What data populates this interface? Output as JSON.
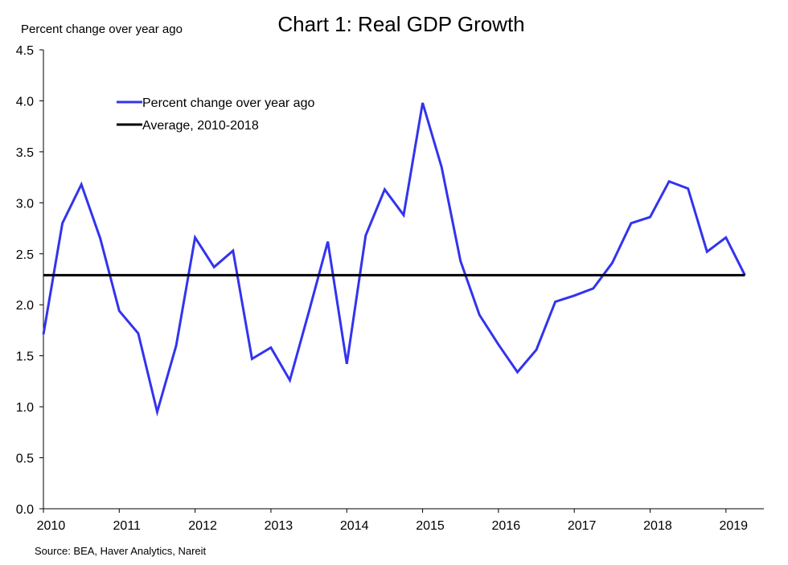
{
  "chart_data": {
    "type": "line",
    "title": "Chart 1: Real GDP Growth",
    "ylabel": "Percent change over year ago",
    "source": "Source: BEA, Haver Analytics, Nareit",
    "ylim": [
      0,
      4.5
    ],
    "yticks": [
      "0.0",
      "0.5",
      "1.0",
      "1.5",
      "2.0",
      "2.5",
      "3.0",
      "3.5",
      "4.0",
      "4.5"
    ],
    "xlim": [
      2010.0,
      2019.5
    ],
    "xticks": [
      "2010",
      "2011",
      "2012",
      "2013",
      "2014",
      "2015",
      "2016",
      "2017",
      "2018",
      "2019"
    ],
    "grid": false,
    "legend": "top-left",
    "series": [
      {
        "name": "Percent change over year ago",
        "color": "#3333ee",
        "x": [
          2010.0,
          2010.25,
          2010.5,
          2010.75,
          2011.0,
          2011.25,
          2011.5,
          2011.75,
          2012.0,
          2012.25,
          2012.5,
          2012.75,
          2013.0,
          2013.25,
          2013.5,
          2013.75,
          2014.0,
          2014.25,
          2014.5,
          2014.75,
          2015.0,
          2015.25,
          2015.5,
          2015.75,
          2016.0,
          2016.25,
          2016.5,
          2016.75,
          2017.0,
          2017.25,
          2017.5,
          2017.75,
          2018.0,
          2018.25,
          2018.5,
          2018.75,
          2019.0,
          2019.25
        ],
        "values": [
          1.71,
          2.8,
          3.18,
          2.65,
          1.94,
          1.72,
          0.95,
          1.6,
          2.66,
          2.37,
          2.53,
          1.47,
          1.58,
          1.26,
          1.93,
          2.62,
          1.42,
          2.68,
          3.13,
          2.88,
          3.98,
          3.35,
          2.43,
          1.9,
          1.61,
          1.34,
          1.56,
          2.03,
          2.09,
          2.16,
          2.41,
          2.8,
          2.86,
          3.21,
          3.14,
          2.52,
          2.66,
          2.29
        ]
      },
      {
        "name": "Average, 2010-2018",
        "color": "#000000",
        "x": [
          2010.0,
          2019.25
        ],
        "values": [
          2.29,
          2.29
        ]
      }
    ]
  }
}
